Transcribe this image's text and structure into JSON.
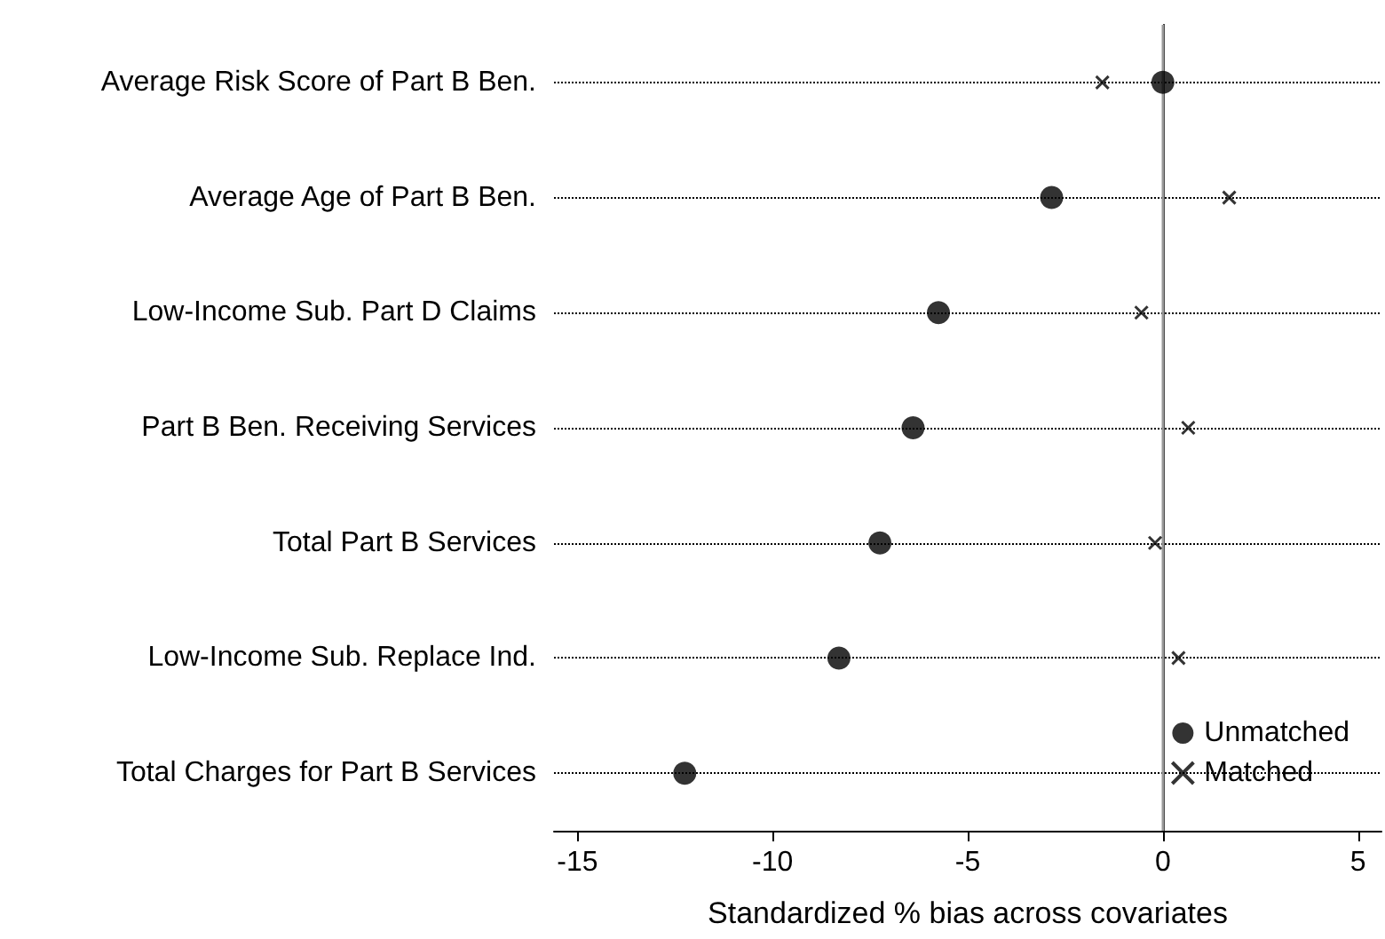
{
  "chart_data": {
    "type": "scatter",
    "orientation": "horizontal",
    "xlabel": "Standardized % bias across covariates",
    "categories": [
      "Average Risk Score of Part B Ben.",
      "Average Age of Part B Ben.",
      "Low-Income Sub. Part D Claims",
      "Part B Ben. Receiving Services",
      "Total Part B Services",
      "Low-Income Sub. Replace Ind.",
      "Total Charges for Part B Services"
    ],
    "series": [
      {
        "name": "Unmatched",
        "color": "#000000",
        "marker": "circle",
        "values": [
          0.0,
          -2.85,
          -5.75,
          -6.4,
          -7.25,
          -8.3,
          -12.25
        ]
      },
      {
        "name": "Matched",
        "color": "#000000",
        "marker": "cross",
        "values": [
          -1.55,
          1.7,
          -0.55,
          0.65,
          -0.2,
          0.4,
          null
        ]
      }
    ],
    "xlim": [
      -15.6,
      5.6
    ],
    "xticks": [
      -15,
      -10,
      -5,
      0,
      5
    ],
    "ref_lines": [
      {
        "axis": "x",
        "value": 0,
        "color": "#999999",
        "line_style": "solid"
      }
    ],
    "grid": "y",
    "line_style": "dotted",
    "legend": "bottom right"
  }
}
